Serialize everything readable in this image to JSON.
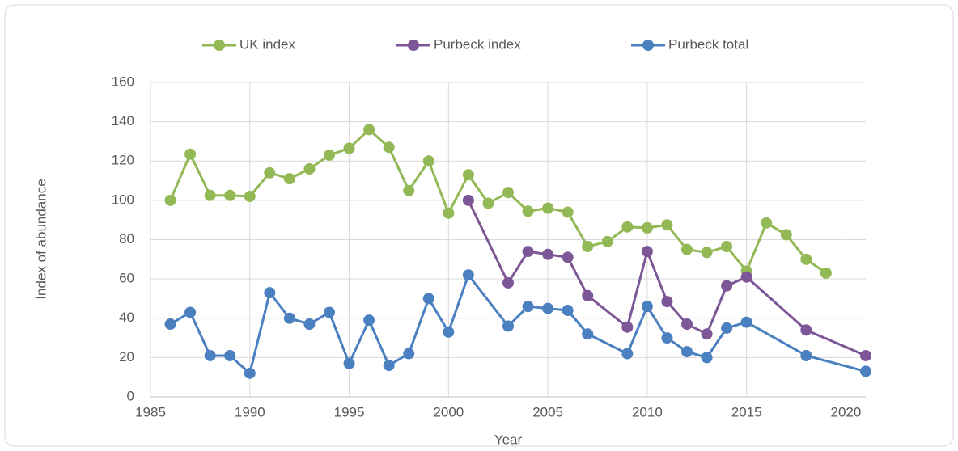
{
  "chart_data": {
    "type": "line",
    "x_label": "Year",
    "y_label": "Index of abundance",
    "xlim": [
      1985,
      2021
    ],
    "xticks": [
      1985,
      1990,
      1995,
      2000,
      2005,
      2010,
      2015,
      2020
    ],
    "ylim": [
      0,
      160
    ],
    "yticks": [
      0,
      20,
      40,
      60,
      80,
      100,
      120,
      140,
      160
    ],
    "grid": true,
    "legend": "top",
    "series": [
      {
        "name": "UK index",
        "color": "#92b955",
        "x": [
          1986,
          1987,
          1988,
          1989,
          1990,
          1991,
          1992,
          1993,
          1994,
          1995,
          1996,
          1997,
          1998,
          1999,
          2000,
          2001,
          2002,
          2003,
          2004,
          2005,
          2006,
          2007,
          2008,
          2009,
          2010,
          2011,
          2012,
          2013,
          2014,
          2015,
          2016,
          2017,
          2018,
          2019
        ],
        "values": [
          100,
          123.5,
          102.5,
          102.5,
          102,
          114,
          111,
          116,
          123,
          126.5,
          136,
          127,
          105,
          120,
          93.5,
          113,
          98.5,
          104,
          94.5,
          96,
          94,
          76.5,
          79,
          86.5,
          86,
          87.5,
          75,
          73.5,
          76.5,
          64,
          88.5,
          82.5,
          70,
          63
        ]
      },
      {
        "name": "Purbeck index",
        "color": "#7c5697",
        "x": [
          2001,
          2003,
          2004,
          2005,
          2006,
          2007,
          2009,
          2010,
          2011,
          2012,
          2013,
          2014,
          2015,
          2018,
          2021
        ],
        "values": [
          100,
          58,
          74,
          72.5,
          71,
          51.5,
          35.5,
          74,
          48.5,
          37,
          32,
          56.5,
          61,
          34,
          21
        ]
      },
      {
        "name": "Purbeck total",
        "color": "#4a80bf",
        "x": [
          1986,
          1987,
          1988,
          1989,
          1990,
          1991,
          1992,
          1993,
          1994,
          1995,
          1996,
          1997,
          1998,
          1999,
          2000,
          2001,
          2003,
          2004,
          2005,
          2006,
          2007,
          2009,
          2010,
          2011,
          2012,
          2013,
          2014,
          2015,
          2018,
          2021
        ],
        "values": [
          37,
          43,
          21,
          21,
          12,
          53,
          40,
          37,
          43,
          17,
          39,
          16,
          22,
          50,
          33,
          62,
          36,
          46,
          45,
          44,
          32,
          22,
          46,
          30,
          23,
          20,
          35,
          38,
          21,
          13
        ]
      }
    ]
  }
}
